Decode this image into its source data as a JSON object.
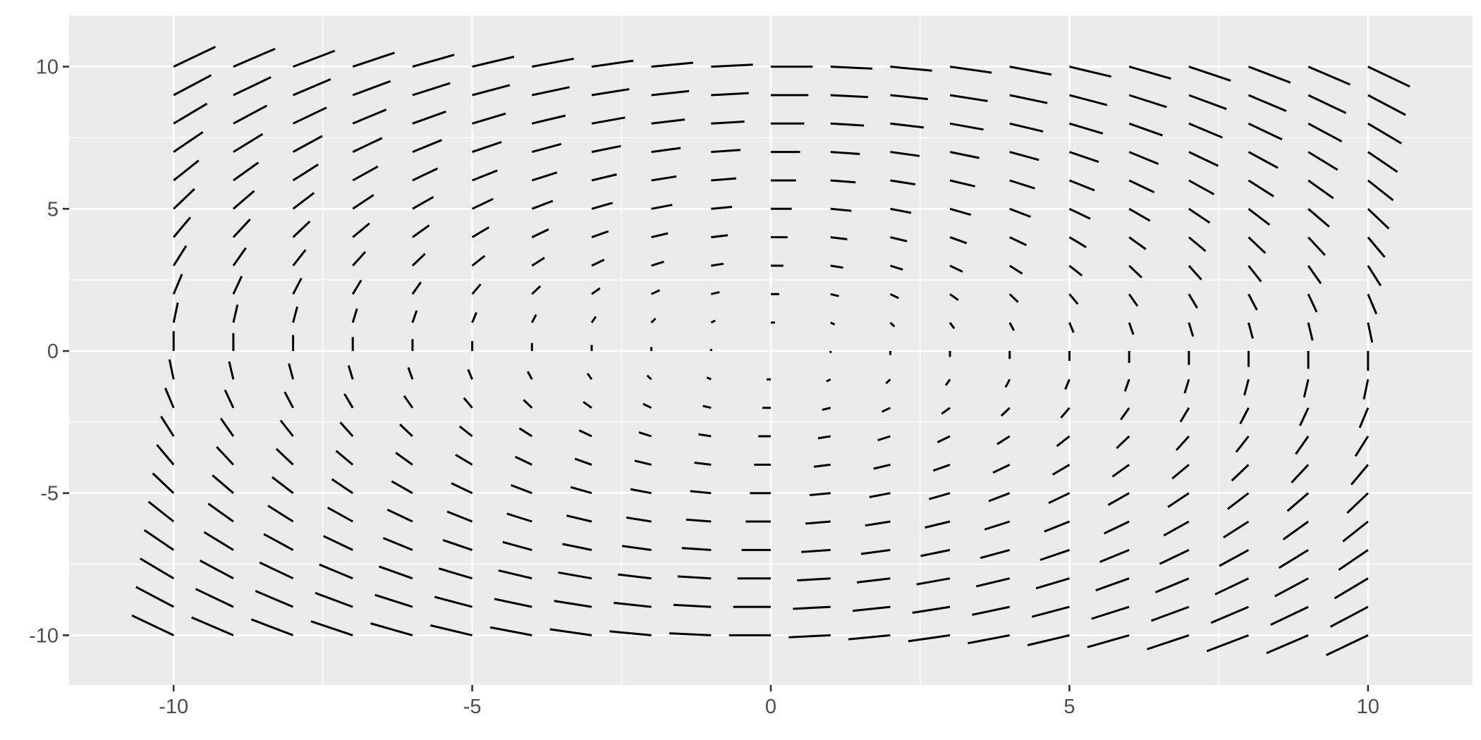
{
  "chart_data": {
    "type": "vector-field",
    "title": "",
    "xlabel": "",
    "ylabel": "",
    "xlim": [
      -11.75,
      11.75
    ],
    "ylim": [
      -11.75,
      11.8
    ],
    "x_ticks": [
      -10,
      -5,
      0,
      5,
      10
    ],
    "y_ticks": [
      -10,
      -5,
      0,
      5,
      10
    ],
    "x_tick_labels": [
      "-10",
      "-5",
      "0",
      "5",
      "10"
    ],
    "y_tick_labels": [
      "10",
      "5",
      "0",
      "-5",
      "-10"
    ],
    "grid": true,
    "legend": "none",
    "field": {
      "description": "u = y, v = -x (clockwise rotation), drawn as segments anchored at grid points toward (x + u*k, y + v*k)",
      "x_range": [
        -10,
        10
      ],
      "y_range": [
        -10,
        10
      ],
      "step": 1,
      "segment_scale": 0.07
    },
    "segment_color": "#000000",
    "panel_color": "#EBEBEB"
  }
}
